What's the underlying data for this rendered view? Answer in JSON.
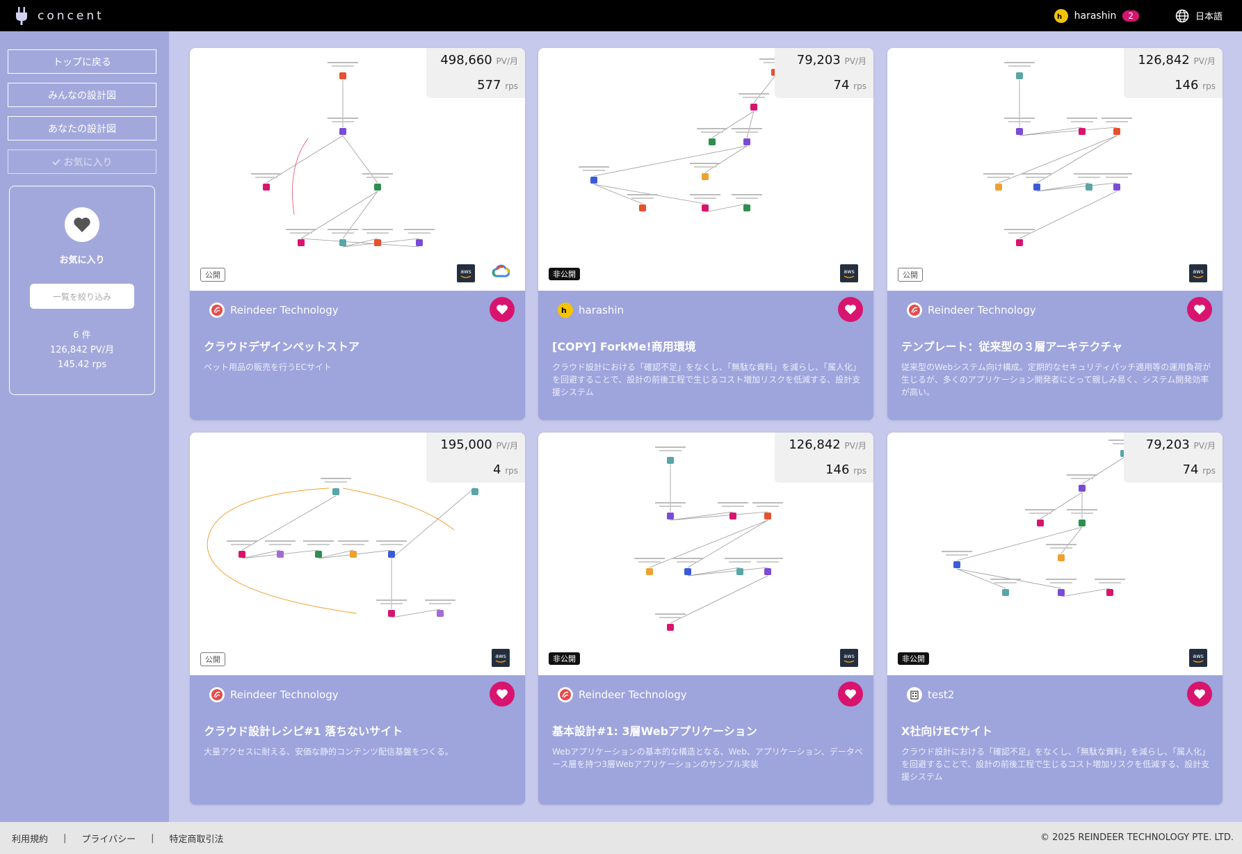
{
  "header": {
    "logo_text": "concent",
    "user_name": "harashin",
    "notification_count": "2",
    "language": "日本語"
  },
  "sidebar": {
    "buttons": [
      {
        "label": "トップに戻る"
      },
      {
        "label": "みんなの設計図"
      },
      {
        "label": "あなたの設計図"
      },
      {
        "label": "お気に入り"
      }
    ],
    "favorites": {
      "title": "お気に入り",
      "filter_placeholder": "一覧を絞り込み",
      "count": "6 件",
      "pv": "126,842 PV/月",
      "rps": "145.42 rps"
    }
  },
  "units": {
    "pv": "PV/月",
    "rps": "rps"
  },
  "cards": [
    {
      "pv": "498,660",
      "rps": "577",
      "visibility": "公開",
      "providers": [
        "aws",
        "gcp"
      ],
      "author": "Reindeer Technology",
      "title": "クラウドデザインペットストア",
      "description": "ペット用品の販売を行うECサイト"
    },
    {
      "pv": "79,203",
      "rps": "74",
      "visibility": "非公開",
      "providers": [
        "aws"
      ],
      "author": "harashin",
      "title": "[COPY] ForkMe!商用環境",
      "description": "クラウド設計における「確認不足」をなくし、「無駄な資料」を減らし、「属人化」を回避することで、設計の前後工程で生じるコスト増加リスクを低減する、設計支援システム"
    },
    {
      "pv": "126,842",
      "rps": "146",
      "visibility": "公開",
      "providers": [
        "aws"
      ],
      "author": "Reindeer Technology",
      "title": "テンプレート：従来型の３層アーキテクチャ",
      "description": "従来型のWebシステム向け構成。定期的なセキュリティパッチ適用等の運用負荷が生じるが、多くのアプリケーション開発者にとって親しみ易く、システム開発効率が高い。"
    },
    {
      "pv": "195,000",
      "rps": "4",
      "visibility": "公開",
      "providers": [
        "aws"
      ],
      "author": "Reindeer Technology",
      "title": "クラウド設計レシピ#1 落ちないサイト",
      "description": "大量アクセスに耐える、安価な静的コンテンツ配信基盤をつくる。"
    },
    {
      "pv": "126,842",
      "rps": "146",
      "visibility": "非公開",
      "providers": [
        "aws"
      ],
      "author": "Reindeer Technology",
      "title": "基本設計#1: 3層Webアプリケーション",
      "description": "Webアプリケーションの基本的な構造となる、Web、アプリケーション、データベース層を持つ3層Webアプリケーションのサンプル実装"
    },
    {
      "pv": "79,203",
      "rps": "74",
      "visibility": "非公開",
      "providers": [
        "aws"
      ],
      "author": "test2",
      "title": "X社向けECサイト",
      "description": "クラウド設計における「確認不足」をなくし、「無駄な資料」を減らし、「属人化」を回避することで、設計の前後工程で生じるコスト増加リスクを低減する、設計支援システム"
    }
  ],
  "footer": {
    "links": [
      "利用規約",
      "プライバシー",
      "特定商取引法"
    ],
    "copyright": "© 2025 REINDEER TECHNOLOGY PTE. LTD."
  },
  "colors": {
    "header_bg": "#000000",
    "sidebar_bg": "#a3a8dc",
    "content_bg": "#c6c9ec",
    "card_bottom": "#9ea4dc",
    "accent": "#d9146e"
  }
}
